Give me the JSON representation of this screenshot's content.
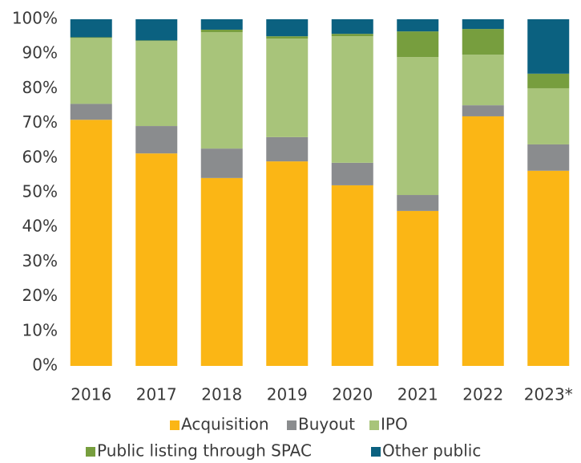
{
  "chart_data": {
    "type": "stacked_bar",
    "categories": [
      "2016",
      "2017",
      "2018",
      "2019",
      "2020",
      "2021",
      "2022",
      "2023*"
    ],
    "series": [
      {
        "name": "Acquisition",
        "color": "#fbb615",
        "values": [
          71,
          61.3,
          54.2,
          59,
          52.1,
          44.7,
          72,
          56.3
        ]
      },
      {
        "name": "Buyout",
        "color": "#8a8c8e",
        "values": [
          4.6,
          7.9,
          8.5,
          7,
          6.5,
          4.6,
          3.2,
          7.6
        ]
      },
      {
        "name": "IPO",
        "color": "#a8c47a",
        "values": [
          19,
          24.5,
          33.6,
          28.4,
          36.5,
          39.8,
          14.6,
          16.2
        ]
      },
      {
        "name": "Public listing through SPAC",
        "color": "#779e3e",
        "values": [
          0.2,
          0.2,
          0.7,
          0.7,
          0.7,
          7.4,
          7.4,
          4.2
        ]
      },
      {
        "name": "Other public",
        "color": "#0b6180",
        "values": [
          5.2,
          6.1,
          3,
          4.9,
          4.2,
          3.5,
          2.8,
          15.7
        ]
      }
    ],
    "ylim": [
      0,
      100
    ],
    "yticks": [
      {
        "value": 0,
        "label": "0%"
      },
      {
        "value": 10,
        "label": "10%"
      },
      {
        "value": 20,
        "label": "20%"
      },
      {
        "value": 30,
        "label": "30%"
      },
      {
        "value": 40,
        "label": "40%"
      },
      {
        "value": 50,
        "label": "50%"
      },
      {
        "value": 60,
        "label": "60%"
      },
      {
        "value": 70,
        "label": "70%"
      },
      {
        "value": 80,
        "label": "80%"
      },
      {
        "value": 90,
        "label": "90%"
      },
      {
        "value": 100,
        "label": "100%"
      }
    ],
    "grid": false,
    "legend": "bottom"
  }
}
